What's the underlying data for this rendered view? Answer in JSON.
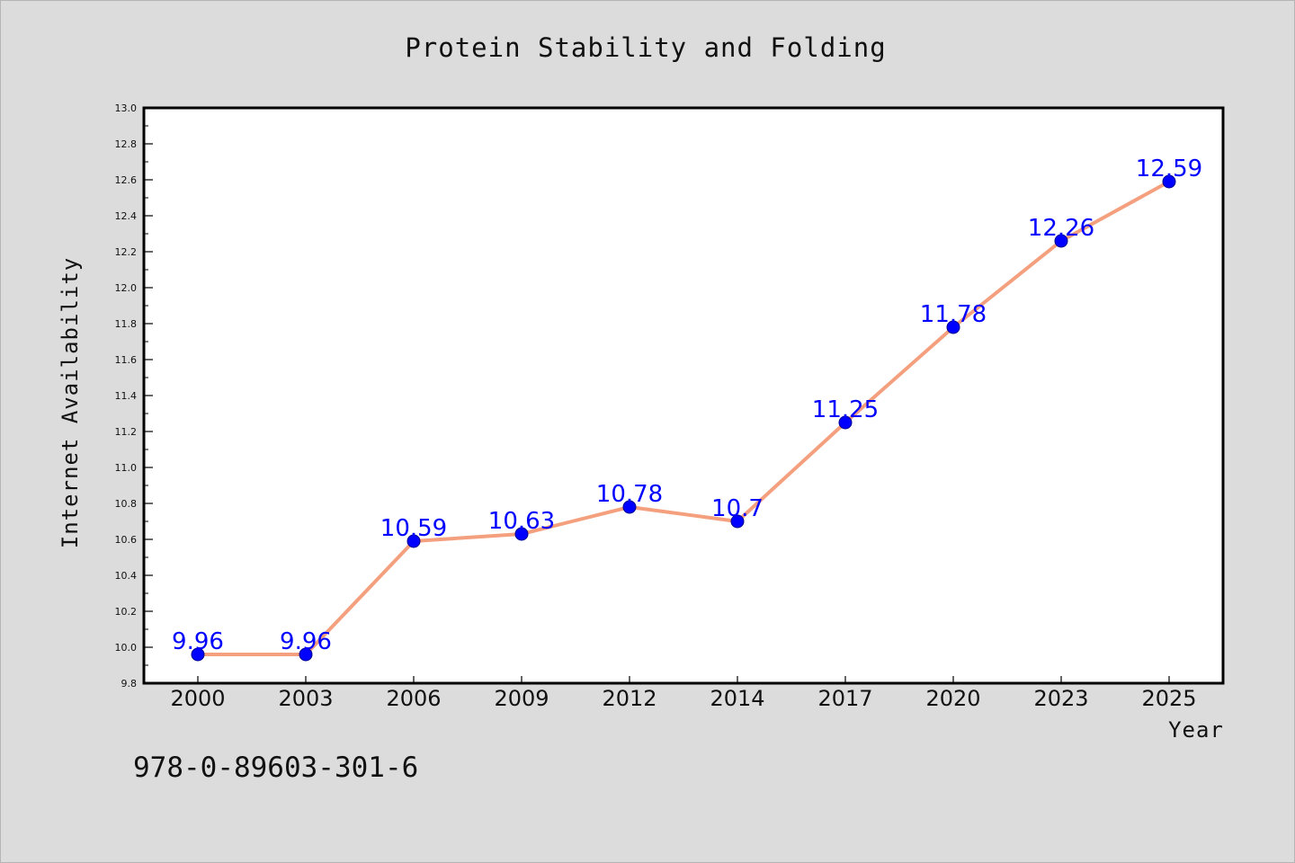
{
  "chart_data": {
    "type": "line",
    "title": "Protein Stability and Folding",
    "xlabel": "Year",
    "ylabel": "Internet Availability",
    "categories": [
      "2000",
      "2003",
      "2006",
      "2009",
      "2012",
      "2014",
      "2017",
      "2020",
      "2023",
      "2025"
    ],
    "series": [
      {
        "values": [
          9.96,
          9.96,
          10.59,
          10.63,
          10.78,
          10.7,
          11.25,
          11.78,
          12.26,
          12.59
        ]
      }
    ],
    "data_labels": [
      "9.96",
      "9.96",
      "10.59",
      "10.63",
      "10.78",
      "10.7",
      "11.25",
      "11.78",
      "12.26",
      "12.59"
    ],
    "ylim": [
      9.8,
      13.0
    ],
    "y_ticks": [
      "9.8",
      "10.0",
      "10.2",
      "10.4",
      "10.6",
      "10.8",
      "11.0",
      "11.2",
      "11.4",
      "11.6",
      "11.8",
      "12.0",
      "12.2",
      "12.4",
      "12.6",
      "12.8",
      "13.0"
    ],
    "grid": false,
    "legend": "none",
    "colors": {
      "line": "#f4a07e",
      "marker": "#0000ff",
      "label": "#0000ff",
      "plot_background": "#ffffff",
      "figure_background": "#dcdcdc"
    }
  },
  "footer": {
    "text": "978-0-89603-301-6"
  }
}
